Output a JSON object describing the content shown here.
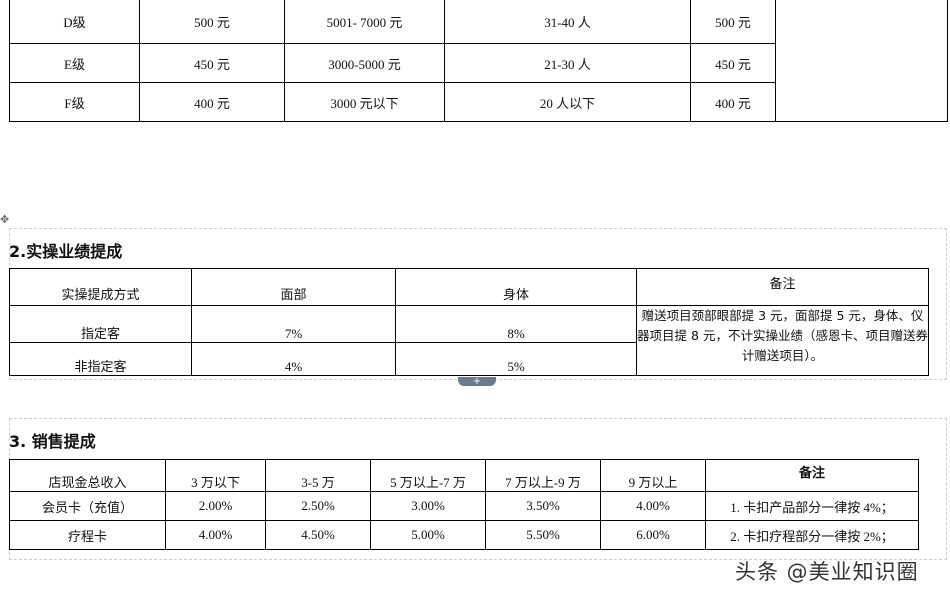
{
  "table1": {
    "rows": [
      [
        "D级",
        "500 元",
        "5001- 7000 元",
        "31-40 人",
        "500 元"
      ],
      [
        "E级",
        "450 元",
        "3000-5000 元",
        "21-30 人",
        "450 元"
      ],
      [
        "F级",
        "400 元",
        "3000 元以下",
        "20 人以下",
        "400 元"
      ]
    ]
  },
  "section2": {
    "title": "2.实操业绩提成",
    "headers": [
      "实操提成方式",
      "面部",
      "身体",
      "备注"
    ],
    "rows": [
      [
        "指定客",
        "7%",
        "8%"
      ],
      [
        "非指定客",
        "4%",
        "5%"
      ]
    ],
    "note": "赠送项目颈部眼部提 3 元，面部提 5 元，身体、仪器项目提 8 元，不计实操业绩（感恩卡、项目赠送券计赠送项目）。"
  },
  "section3": {
    "title": "3.  销售提成",
    "headers": [
      "店现金总收入",
      "3 万以下",
      "3-5 万",
      "5 万以上-7 万",
      "7 万以上-9 万",
      "9 万以上",
      "备注"
    ],
    "rows": [
      [
        "会员卡（充值）",
        "2.00%",
        "2.50%",
        "3.00%",
        "3.50%",
        "4.00%",
        "1. 卡扣产品部分一律按 4%；"
      ],
      [
        "疗程卡",
        "4.00%",
        "4.50%",
        "5.00%",
        "5.50%",
        "6.00%",
        "2. 卡扣疗程部分一律按 2%；"
      ]
    ]
  },
  "watermark": "头条 @美业知识圈"
}
